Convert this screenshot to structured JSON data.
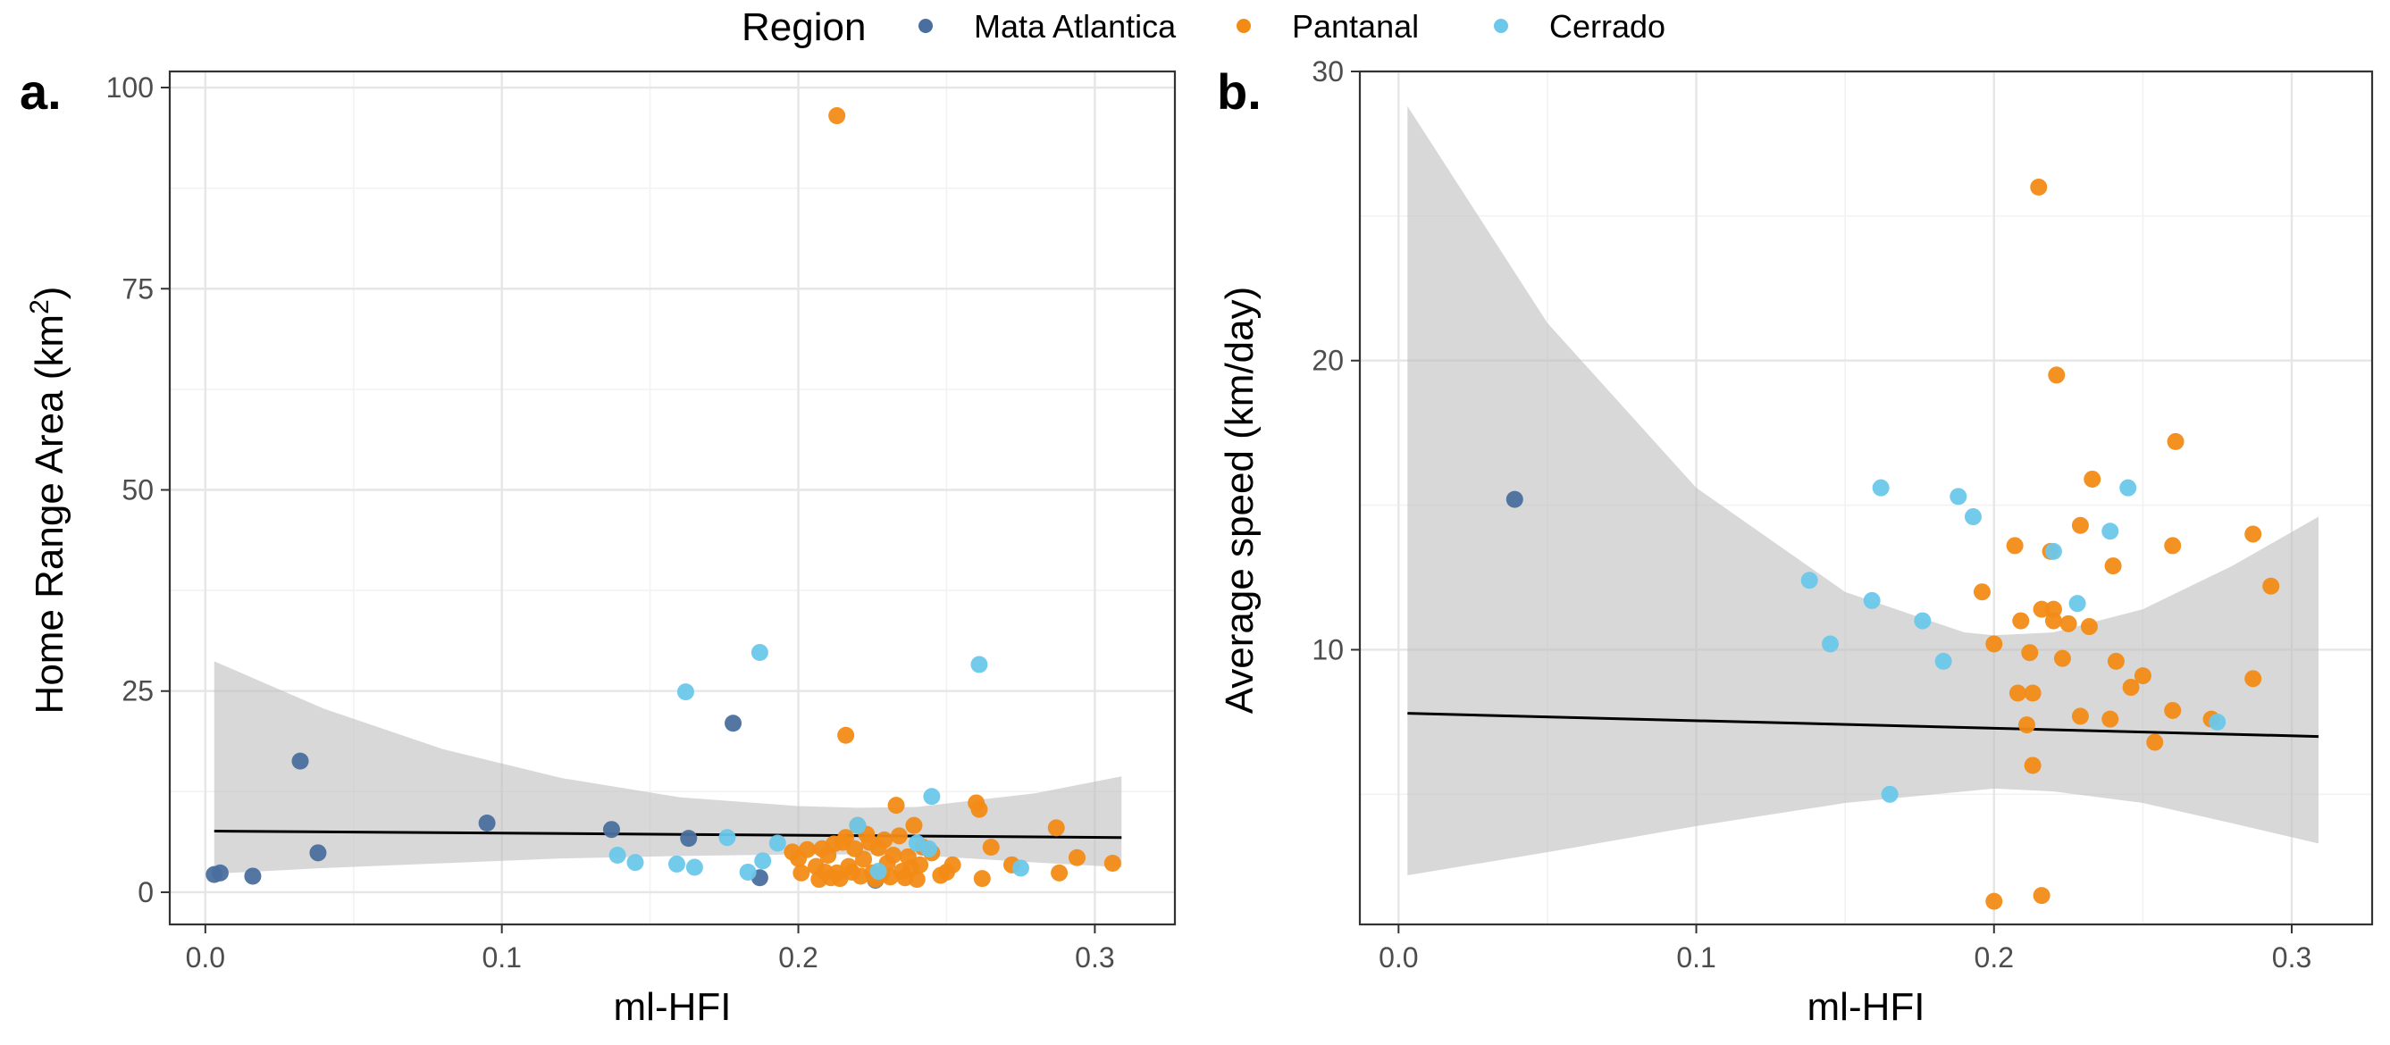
{
  "legend": {
    "title": "Region",
    "entries": [
      {
        "label": "Mata Atlantica",
        "color": "#4a6f9e"
      },
      {
        "label": "Pantanal",
        "color": "#f28b16"
      },
      {
        "label": "Cerrado",
        "color": "#6cc8ea"
      }
    ]
  },
  "chart_data": [
    {
      "panel_label": "a.",
      "type": "scatter",
      "xlabel": "ml-HFI",
      "ylabel_main": "Home Range Area (km",
      "ylabel_sup": "2",
      "ylabel_close": ")",
      "xlim": [
        -0.012,
        0.327
      ],
      "ylim": [
        -4,
        102
      ],
      "x_ticks": [
        0.0,
        0.1,
        0.2,
        0.3
      ],
      "x_tick_labels": [
        "0.0",
        "0.1",
        "0.2",
        "0.3"
      ],
      "y_ticks": [
        0,
        25,
        50,
        75,
        100
      ],
      "y_tick_labels": [
        "0",
        "25",
        "50",
        "75",
        "100"
      ],
      "grid": true,
      "fit": {
        "x": [
          0.003,
          0.309
        ],
        "y": [
          7.6,
          6.8
        ]
      },
      "ci_band": {
        "x": [
          0.003,
          0.04,
          0.08,
          0.12,
          0.16,
          0.2,
          0.22,
          0.24,
          0.28,
          0.309
        ],
        "upper": [
          28.7,
          22.8,
          17.8,
          14.2,
          11.8,
          10.7,
          10.5,
          10.6,
          12.3,
          14.4
        ],
        "lower": [
          2.3,
          3.0,
          3.6,
          4.2,
          4.5,
          4.7,
          4.7,
          4.6,
          3.7,
          3.1
        ]
      },
      "series": [
        {
          "name": "Mata Atlantica",
          "color": "#4a6f9e",
          "points": [
            [
              0.003,
              2.2
            ],
            [
              0.005,
              2.4
            ],
            [
              0.016,
              2.0
            ],
            [
              0.032,
              16.3
            ],
            [
              0.038,
              4.9
            ],
            [
              0.095,
              8.6
            ],
            [
              0.137,
              7.8
            ],
            [
              0.163,
              6.7
            ],
            [
              0.178,
              21.0
            ],
            [
              0.187,
              1.8
            ],
            [
              0.226,
              1.5
            ]
          ]
        },
        {
          "name": "Pantanal",
          "color": "#f28b16",
          "points": [
            [
              0.213,
              96.5
            ],
            [
              0.216,
              19.5
            ],
            [
              0.198,
              5.0
            ],
            [
              0.2,
              4.2
            ],
            [
              0.201,
              2.4
            ],
            [
              0.203,
              5.3
            ],
            [
              0.206,
              3.2
            ],
            [
              0.207,
              1.6
            ],
            [
              0.208,
              5.4
            ],
            [
              0.209,
              2.5
            ],
            [
              0.21,
              4.6
            ],
            [
              0.211,
              1.8
            ],
            [
              0.212,
              6.0
            ],
            [
              0.213,
              2.4
            ],
            [
              0.214,
              1.7
            ],
            [
              0.215,
              6.2
            ],
            [
              0.216,
              6.8
            ],
            [
              0.217,
              3.2
            ],
            [
              0.218,
              2.5
            ],
            [
              0.219,
              5.4
            ],
            [
              0.22,
              8.3
            ],
            [
              0.221,
              2.0
            ],
            [
              0.222,
              4.1
            ],
            [
              0.223,
              7.2
            ],
            [
              0.224,
              6.2
            ],
            [
              0.225,
              2.4
            ],
            [
              0.226,
              1.6
            ],
            [
              0.227,
              5.5
            ],
            [
              0.228,
              2.2
            ],
            [
              0.229,
              6.5
            ],
            [
              0.23,
              3.6
            ],
            [
              0.231,
              1.9
            ],
            [
              0.232,
              4.6
            ],
            [
              0.233,
              10.8
            ],
            [
              0.234,
              7.0
            ],
            [
              0.235,
              2.6
            ],
            [
              0.236,
              1.8
            ],
            [
              0.237,
              4.4
            ],
            [
              0.238,
              3.0
            ],
            [
              0.239,
              8.3
            ],
            [
              0.24,
              1.6
            ],
            [
              0.241,
              3.4
            ],
            [
              0.242,
              5.6
            ],
            [
              0.245,
              4.9
            ],
            [
              0.248,
              2.1
            ],
            [
              0.25,
              2.5
            ],
            [
              0.252,
              3.4
            ],
            [
              0.26,
              11.1
            ],
            [
              0.261,
              10.3
            ],
            [
              0.262,
              1.7
            ],
            [
              0.265,
              5.6
            ],
            [
              0.272,
              3.4
            ],
            [
              0.287,
              8.0
            ],
            [
              0.288,
              2.4
            ],
            [
              0.294,
              4.3
            ],
            [
              0.306,
              3.6
            ]
          ]
        },
        {
          "name": "Cerrado",
          "color": "#6cc8ea",
          "points": [
            [
              0.139,
              4.6
            ],
            [
              0.145,
              3.7
            ],
            [
              0.159,
              3.5
            ],
            [
              0.162,
              24.9
            ],
            [
              0.165,
              3.1
            ],
            [
              0.176,
              6.8
            ],
            [
              0.183,
              2.5
            ],
            [
              0.187,
              29.8
            ],
            [
              0.188,
              3.9
            ],
            [
              0.193,
              6.1
            ],
            [
              0.22,
              8.3
            ],
            [
              0.227,
              2.6
            ],
            [
              0.24,
              6.1
            ],
            [
              0.244,
              5.4
            ],
            [
              0.245,
              11.9
            ],
            [
              0.261,
              28.3
            ],
            [
              0.275,
              3.0
            ]
          ]
        }
      ]
    },
    {
      "panel_label": "b.",
      "type": "scatter",
      "xlabel": "ml-HFI",
      "ylabel": "Average speed (km/day)",
      "xlim": [
        -0.013,
        0.327
      ],
      "ylim": [
        0.5,
        30
      ],
      "x_ticks": [
        0.0,
        0.1,
        0.2,
        0.3
      ],
      "x_tick_labels": [
        "0.0",
        "0.1",
        "0.2",
        "0.3"
      ],
      "y_ticks": [
        10,
        20,
        30
      ],
      "y_tick_labels": [
        "10",
        "20",
        "30"
      ],
      "grid": true,
      "fit": {
        "x": [
          0.003,
          0.309
        ],
        "y": [
          7.8,
          7.0
        ]
      },
      "ci_band": {
        "x": [
          0.003,
          0.05,
          0.1,
          0.15,
          0.19,
          0.2,
          0.22,
          0.25,
          0.28,
          0.309
        ],
        "upper": [
          28.8,
          21.3,
          15.6,
          12.0,
          10.6,
          10.5,
          10.6,
          11.4,
          12.9,
          14.6
        ],
        "lower": [
          2.2,
          3.0,
          3.9,
          4.7,
          5.1,
          5.2,
          5.1,
          4.7,
          4.0,
          3.3
        ]
      },
      "series": [
        {
          "name": "Mata Atlantica",
          "color": "#4a6f9e",
          "points": [
            [
              0.039,
              15.2
            ]
          ]
        },
        {
          "name": "Pantanal",
          "color": "#f28b16",
          "points": [
            [
              0.215,
              26.0
            ],
            [
              0.221,
              19.5
            ],
            [
              0.261,
              17.2
            ],
            [
              0.233,
              15.9
            ],
            [
              0.207,
              13.6
            ],
            [
              0.229,
              14.3
            ],
            [
              0.26,
              13.6
            ],
            [
              0.287,
              14.0
            ],
            [
              0.219,
              13.4
            ],
            [
              0.24,
              12.9
            ],
            [
              0.196,
              12.0
            ],
            [
              0.293,
              12.2
            ],
            [
              0.216,
              11.4
            ],
            [
              0.22,
              11.4
            ],
            [
              0.209,
              11.0
            ],
            [
              0.22,
              11.0
            ],
            [
              0.225,
              10.9
            ],
            [
              0.232,
              10.8
            ],
            [
              0.2,
              10.2
            ],
            [
              0.212,
              9.9
            ],
            [
              0.223,
              9.7
            ],
            [
              0.241,
              9.6
            ],
            [
              0.25,
              9.1
            ],
            [
              0.287,
              9.0
            ],
            [
              0.208,
              8.5
            ],
            [
              0.213,
              8.5
            ],
            [
              0.246,
              8.7
            ],
            [
              0.26,
              7.9
            ],
            [
              0.229,
              7.7
            ],
            [
              0.239,
              7.6
            ],
            [
              0.211,
              7.4
            ],
            [
              0.273,
              7.6
            ],
            [
              0.254,
              6.8
            ],
            [
              0.213,
              6.0
            ],
            [
              0.2,
              1.3
            ],
            [
              0.216,
              1.5
            ]
          ]
        },
        {
          "name": "Cerrado",
          "color": "#6cc8ea",
          "points": [
            [
              0.162,
              15.6
            ],
            [
              0.245,
              15.6
            ],
            [
              0.188,
              15.3
            ],
            [
              0.193,
              14.6
            ],
            [
              0.239,
              14.1
            ],
            [
              0.22,
              13.4
            ],
            [
              0.138,
              12.4
            ],
            [
              0.159,
              11.7
            ],
            [
              0.228,
              11.6
            ],
            [
              0.176,
              11.0
            ],
            [
              0.145,
              10.2
            ],
            [
              0.183,
              9.6
            ],
            [
              0.275,
              7.5
            ],
            [
              0.165,
              5.0
            ]
          ]
        }
      ]
    }
  ]
}
